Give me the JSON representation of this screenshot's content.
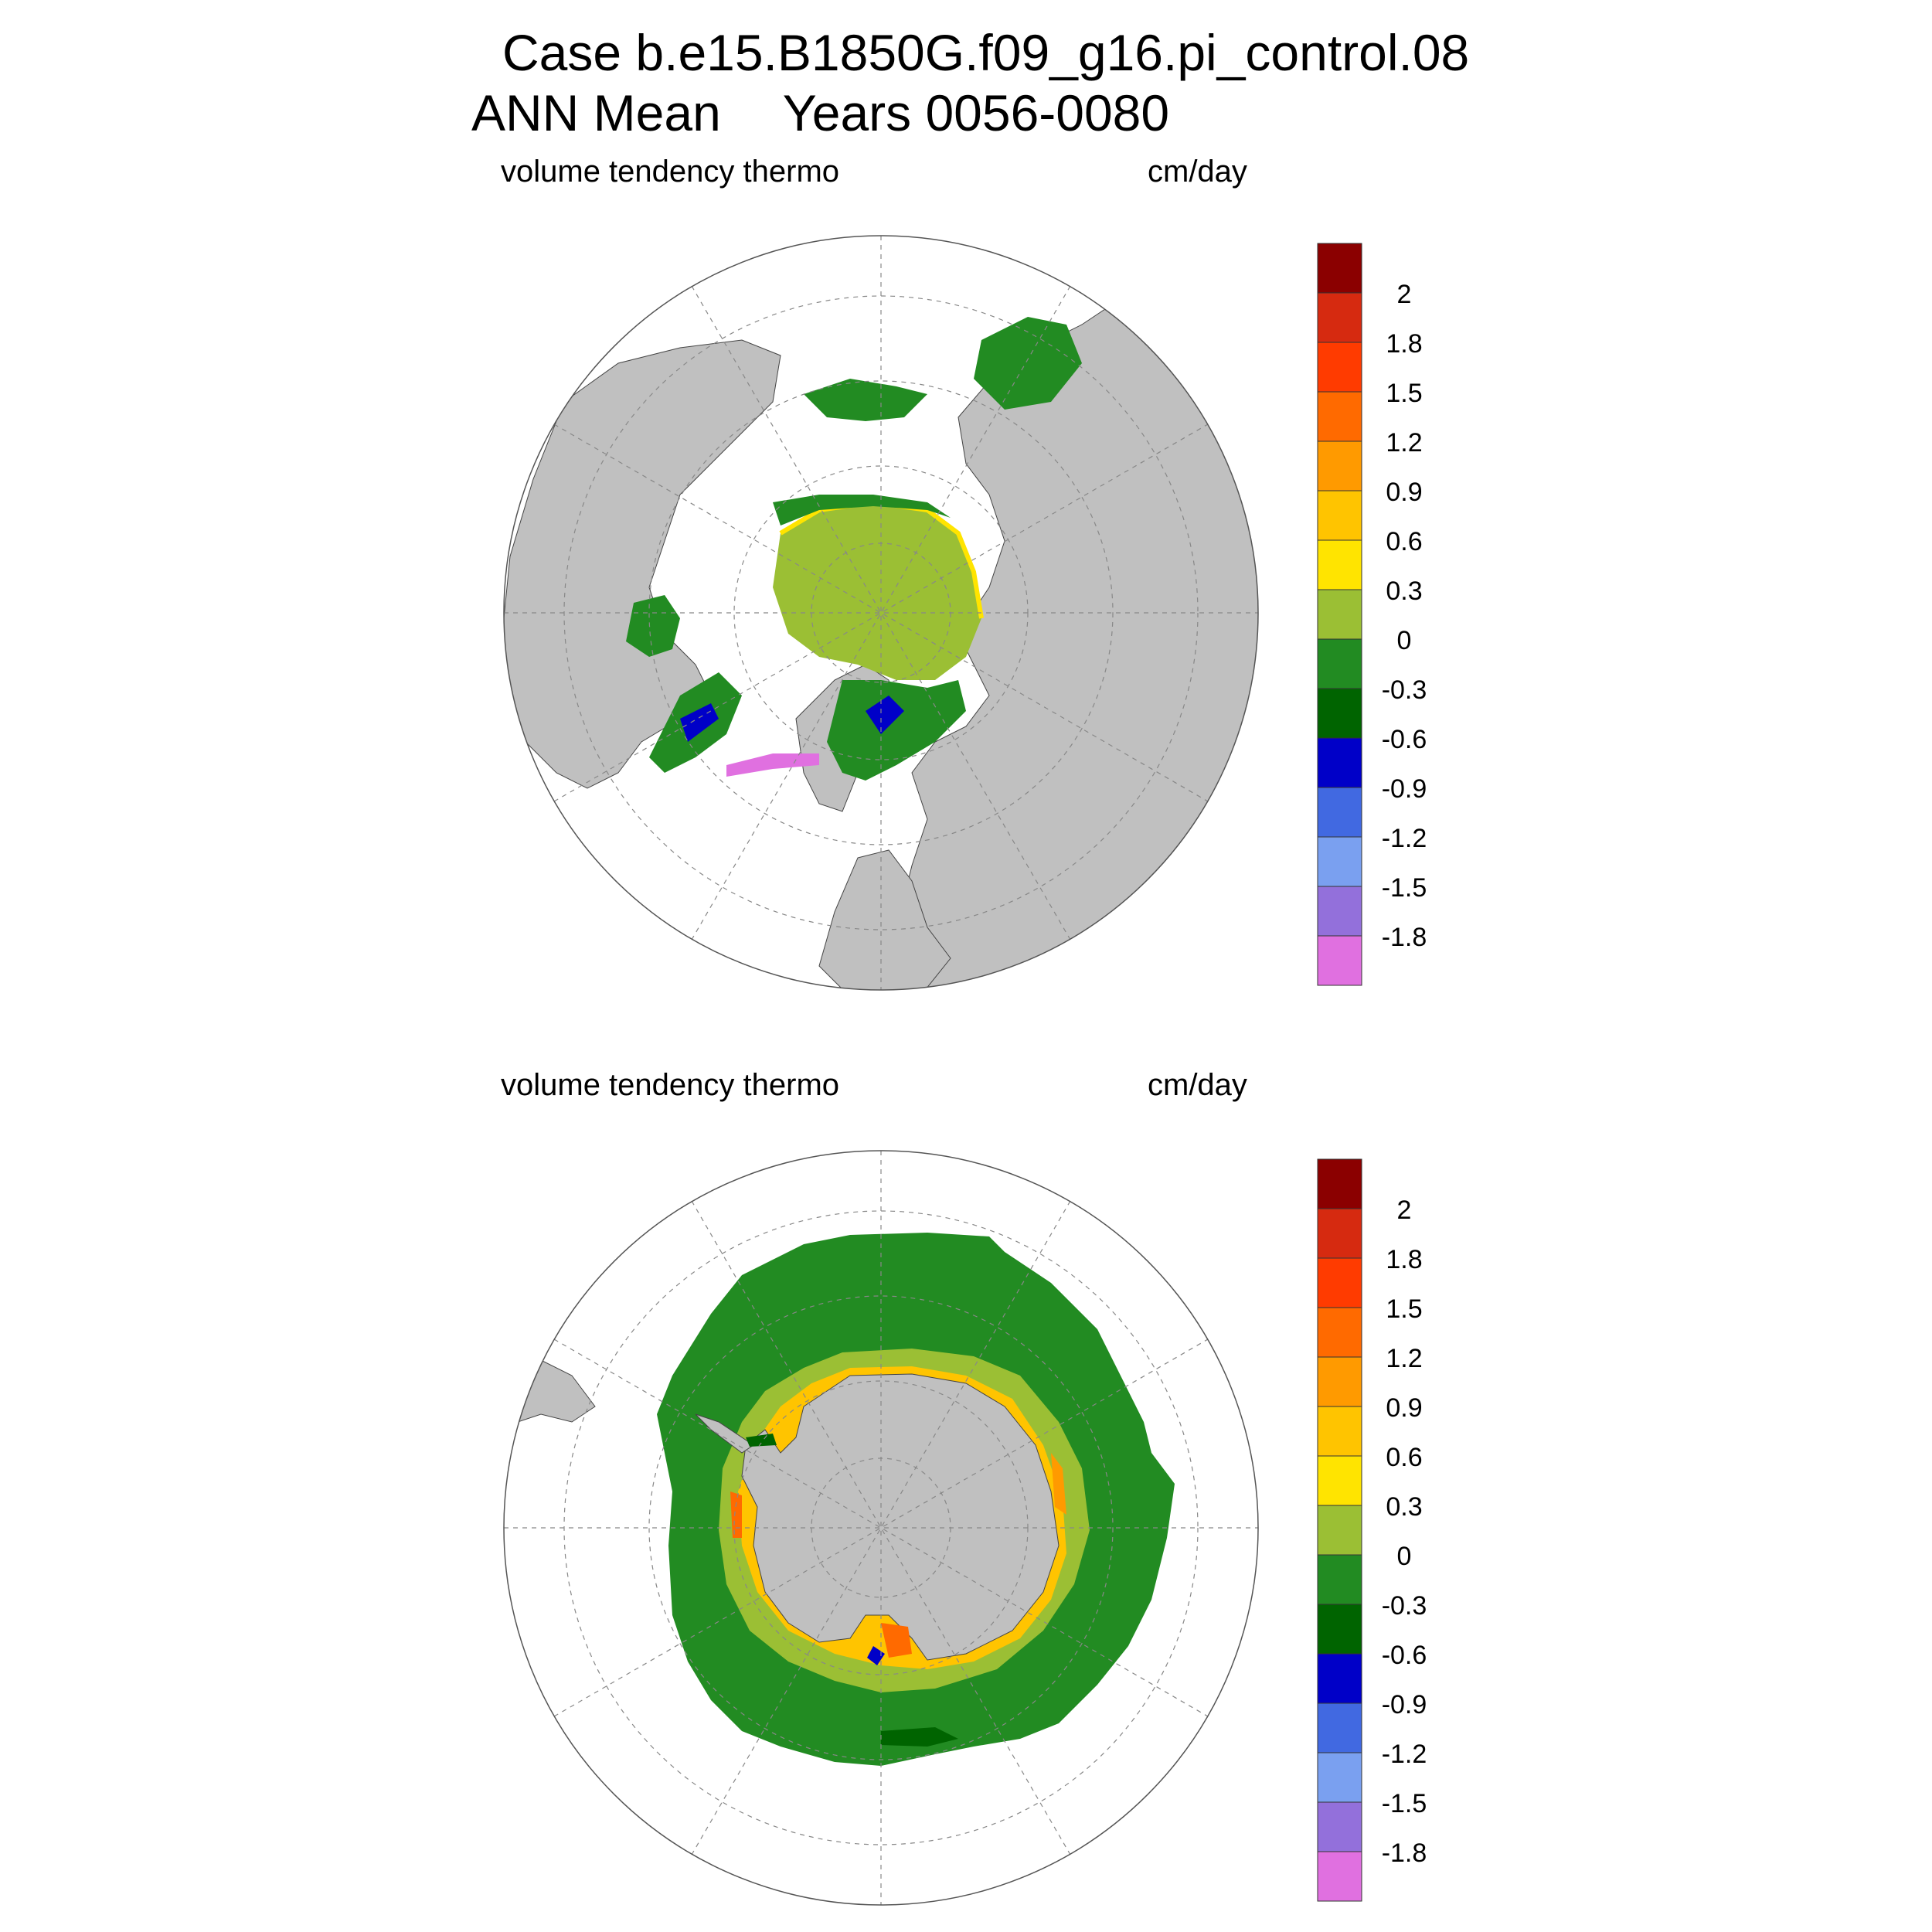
{
  "header": {
    "case_line": "Case b.e15.B1850G.f09_g16.pi_control.08",
    "season": "ANN Mean",
    "years": "Years 0056-0080"
  },
  "panels": [
    {
      "id": "north",
      "variable": "volume tendency thermo",
      "units": "cm/day"
    },
    {
      "id": "south",
      "variable": "volume tendency thermo",
      "units": "cm/day"
    }
  ],
  "colorbar": {
    "labels": [
      "2",
      "1.8",
      "1.5",
      "1.2",
      "0.9",
      "0.6",
      "0.3",
      "0",
      "-0.3",
      "-0.6",
      "-0.9",
      "-1.2",
      "-1.5",
      "-1.8"
    ],
    "colors": [
      "#8b0000",
      "#d62a10",
      "#ff3b00",
      "#ff6a00",
      "#ff9a00",
      "#ffc400",
      "#ffe400",
      "#9bbf34",
      "#228b22",
      "#006400",
      "#0000c8",
      "#4169e1",
      "#7aa0f0",
      "#9370db",
      "#e070e0"
    ]
  },
  "map_colors": {
    "land": "#c0c0c0",
    "ocean": "#ffffff"
  }
}
